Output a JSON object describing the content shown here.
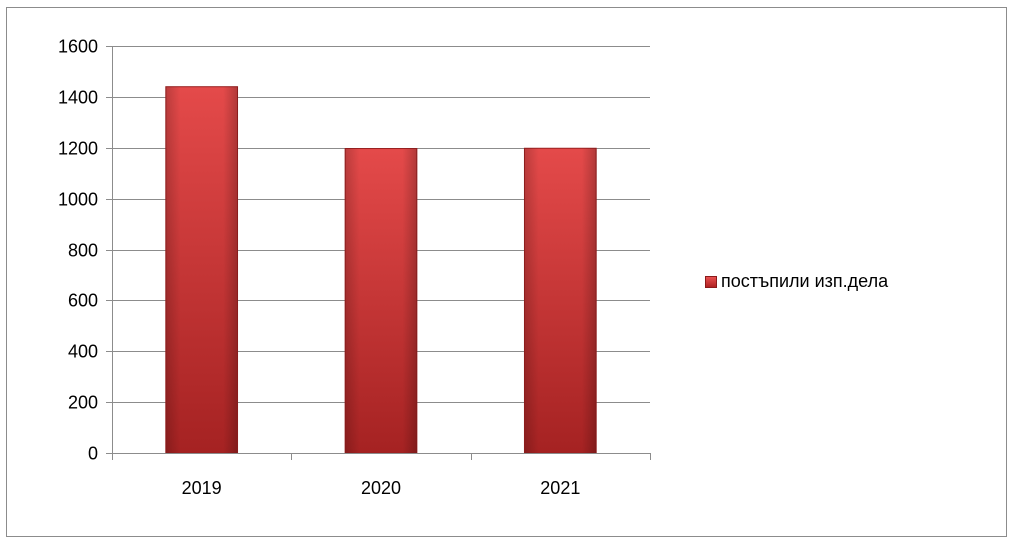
{
  "chart_data": {
    "type": "bar",
    "categories": [
      "2019",
      "2020",
      "2021"
    ],
    "series": [
      {
        "name": "постъпили изп.дела",
        "values": [
          1440,
          1197,
          1198
        ]
      }
    ],
    "title": "",
    "xlabel": "",
    "ylabel": "",
    "ylim": [
      0,
      1600
    ],
    "yticks": [
      0,
      200,
      400,
      600,
      800,
      1000,
      1200,
      1400,
      1600
    ],
    "grid": true,
    "legend_position": "right",
    "colors": {
      "bar": "#d43a3a",
      "bar_dark": "#a82424",
      "grid": "#8c8c8c",
      "axis": "#8c8c8c"
    }
  }
}
